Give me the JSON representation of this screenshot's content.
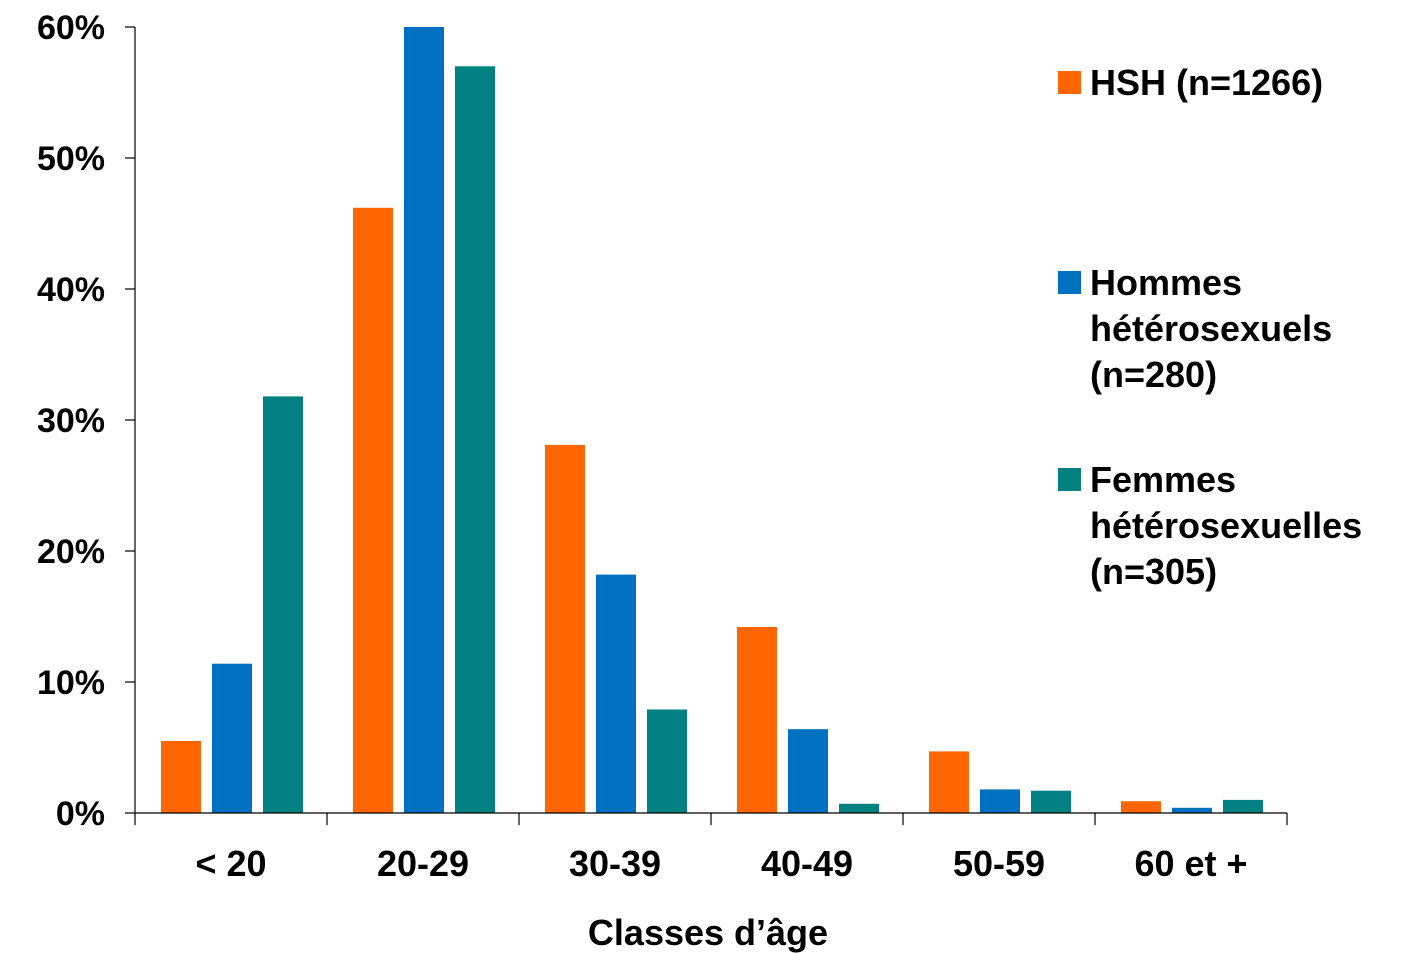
{
  "chart_data": {
    "type": "bar",
    "title": "",
    "xlabel": "Classes d’âge",
    "ylabel": "",
    "ylim": [
      0,
      60
    ],
    "yticks": [
      "0%",
      "10%",
      "20%",
      "30%",
      "40%",
      "50%",
      "60%"
    ],
    "categories": [
      "< 20",
      "20-29",
      "30-39",
      "40-49",
      "50-59",
      "60 et +"
    ],
    "series": [
      {
        "name": "HSH (n=1266)",
        "color": "#FF6600",
        "values": [
          5.5,
          46.2,
          28.1,
          14.2,
          4.7,
          0.9
        ]
      },
      {
        "name": "Hommes hétérosexuels (n=280)",
        "color": "#0070C0",
        "values": [
          11.4,
          60.0,
          18.2,
          6.4,
          1.8,
          0.4
        ]
      },
      {
        "name": "Femmes hétérosexuelles (n=305)",
        "color": "#008080",
        "values": [
          31.8,
          57.0,
          7.9,
          0.7,
          1.7,
          1.0
        ]
      }
    ],
    "grid": false,
    "legend_position": "right"
  }
}
